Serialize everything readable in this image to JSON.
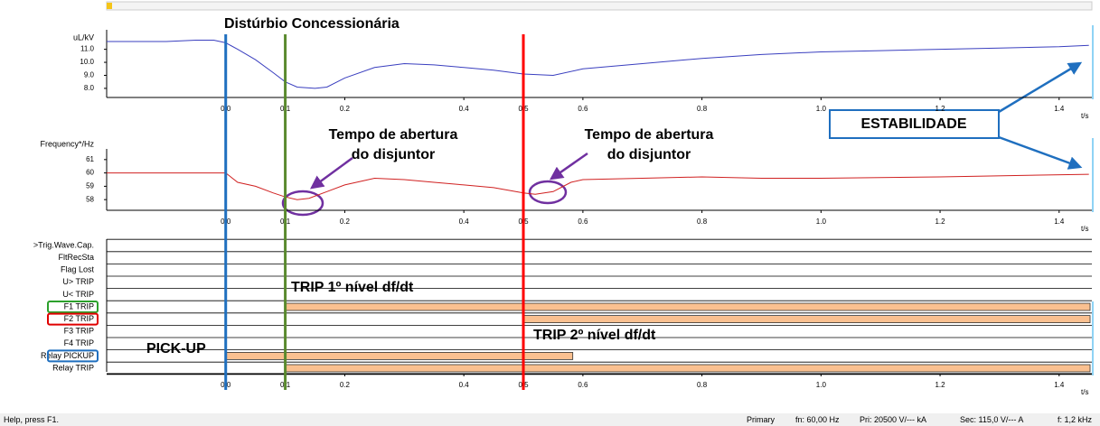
{
  "x_axis": {
    "xlim": [
      -0.2,
      1.455
    ],
    "unit": "t/s",
    "xticks": [
      {
        "value": 0,
        "label": "0.0"
      },
      0.1,
      0.2,
      0.4,
      0.5,
      0.6,
      0.8,
      {
        "value": 1,
        "label": "1.0"
      },
      1.2,
      1.4
    ]
  },
  "panels": [
    {
      "type": "line",
      "label": "uL/kV",
      "color": "#3a3fbf",
      "ylim": [
        7.3,
        12.5
      ],
      "yticks": [
        {
          "value": 8,
          "label": "8.0"
        },
        {
          "value": 9,
          "label": "9.0"
        },
        {
          "value": 10,
          "label": "10.0"
        },
        {
          "value": 11,
          "label": "11.0"
        }
      ],
      "x": [
        -0.2,
        -0.1,
        -0.05,
        -0.02,
        0,
        0.02,
        0.05,
        0.08,
        0.1,
        0.12,
        0.15,
        0.17,
        0.2,
        0.25,
        0.3,
        0.35,
        0.4,
        0.45,
        0.5,
        0.55,
        0.6,
        0.7,
        0.8,
        0.9,
        1.0,
        1.1,
        1.2,
        1.3,
        1.4,
        1.45
      ],
      "values": [
        11.6,
        11.6,
        11.7,
        11.7,
        11.5,
        11.0,
        10.2,
        9.2,
        8.5,
        8.1,
        8.0,
        8.1,
        8.8,
        9.6,
        9.9,
        9.8,
        9.6,
        9.4,
        9.1,
        9.0,
        9.5,
        9.9,
        10.3,
        10.6,
        10.8,
        10.9,
        11.0,
        11.1,
        11.2,
        11.3
      ]
    },
    {
      "type": "line",
      "label": "Frequency*/Hz",
      "color": "#d02020",
      "ylim": [
        57.2,
        61.8
      ],
      "yticks": [
        58,
        59,
        60,
        61
      ],
      "x": [
        -0.2,
        0,
        0.02,
        0.05,
        0.08,
        0.1,
        0.12,
        0.14,
        0.17,
        0.2,
        0.25,
        0.3,
        0.35,
        0.4,
        0.45,
        0.5,
        0.52,
        0.55,
        0.58,
        0.6,
        0.7,
        0.8,
        0.9,
        1.0,
        1.2,
        1.45
      ],
      "values": [
        60,
        60,
        59.3,
        59.0,
        58.5,
        58.2,
        58.0,
        58.1,
        58.6,
        59.1,
        59.6,
        59.5,
        59.3,
        59.1,
        58.9,
        58.5,
        58.4,
        58.6,
        59.3,
        59.5,
        59.6,
        59.7,
        59.6,
        59.6,
        59.7,
        59.9
      ]
    }
  ],
  "binary": {
    "color": "#fac090",
    "signals": [
      {
        "name": ">Trig.Wave.Cap."
      },
      {
        "name": "FltRecSta"
      },
      {
        "name": "Flag Lost"
      },
      {
        "name": "U> TRIP"
      },
      {
        "name": "U< TRIP"
      },
      {
        "name": "F1 TRIP",
        "box": "#2ca02c",
        "on": [
          0.1,
          1.452
        ]
      },
      {
        "name": "F2 TRIP",
        "box": "#e00000",
        "on": [
          0.5,
          1.452
        ]
      },
      {
        "name": "F3 TRIP"
      },
      {
        "name": "F4 TRIP"
      },
      {
        "name": "Relay PICKUP",
        "box": "#1f6fbf",
        "on": [
          0,
          0.583
        ]
      },
      {
        "name": "Relay TRIP",
        "on": [
          0.1,
          1.452
        ]
      }
    ]
  },
  "markers": [
    {
      "x": 0,
      "color": "#1f6fbf"
    },
    {
      "x": 0.1,
      "color": "#5a8a2e"
    },
    {
      "x": 0.5,
      "color": "#ff0000"
    }
  ],
  "annotations": {
    "disturbance": "Distúrbio Concessionária",
    "stability": "ESTABILIDADE",
    "opening1": [
      "Tempo de abertura",
      "do disjuntor"
    ],
    "opening2": [
      "Tempo de abertura",
      "do disjuntor"
    ],
    "trip1": "TRIP 1º nível df/dt",
    "trip2": "TRIP 2º nível df/dt",
    "pickup": "PICK-UP"
  },
  "status": {
    "help": "Help, press F1.",
    "items": [
      "Primary",
      "fn: 60,00 Hz",
      "Pri: 20500 V/--- kA",
      "Sec: 115,0 V/--- A",
      "f: 1,2 kHz"
    ]
  }
}
